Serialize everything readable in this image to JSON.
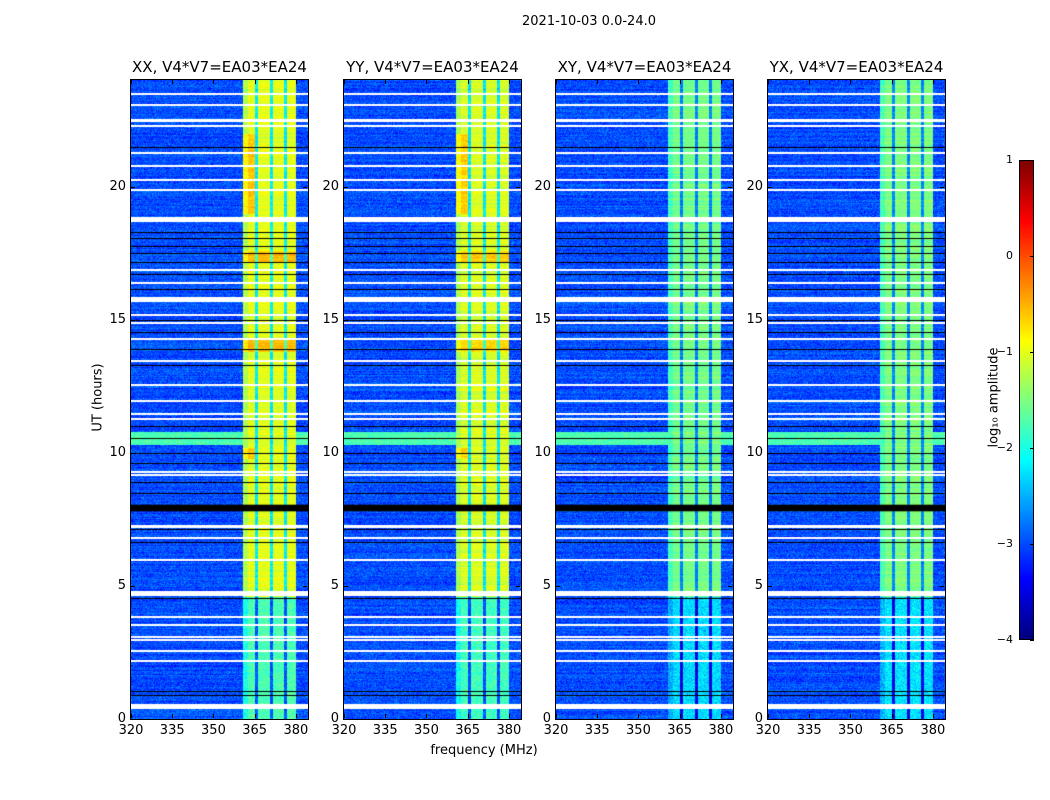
{
  "suptitle": "2021-10-03 0.0-24.0",
  "xlabel": "frequency (MHz)",
  "ylabel": "UT (hours)",
  "chart_data": [
    {
      "type": "heatmap",
      "title": "XX, V4*V7=EA03*EA24",
      "band_level": -1.0
    },
    {
      "type": "heatmap",
      "title": "YY, V4*V7=EA03*EA24",
      "band_level": -1.05
    },
    {
      "type": "heatmap",
      "title": "XY, V4*V7=EA03*EA24",
      "band_level": -1.55
    },
    {
      "type": "heatmap",
      "title": "YX, V4*V7=EA03*EA24",
      "band_level": -1.5
    }
  ],
  "axes": {
    "xlim": [
      320,
      384.4
    ],
    "ylim": [
      0,
      24
    ],
    "xticks": [
      "320",
      "335",
      "350",
      "365",
      "380"
    ],
    "xtick_values": [
      320,
      335,
      350,
      365,
      380
    ],
    "yticks": [
      "0",
      "5",
      "10",
      "15",
      "20"
    ],
    "ytick_values": [
      0,
      5,
      10,
      15,
      20
    ]
  },
  "features": {
    "background_level": -3.0,
    "band_mhz": [
      360.7,
      380
    ],
    "band_gaps_mhz": [
      365.5,
      371,
      376
    ],
    "weak_band_before_ut": 4.6,
    "elevated_rfi_ut": [
      10.3,
      10.8
    ],
    "flagged_white_ut": [
      0.45,
      0.5,
      0.55,
      2.2,
      2.6,
      3.0,
      3.1,
      3.55,
      3.85,
      4.7,
      4.75,
      4.8,
      6.0,
      6.85,
      7.25,
      7.3,
      9.2,
      9.3,
      11.3,
      11.5,
      12.0,
      12.6,
      13.5,
      14.3,
      14.9,
      15.2,
      15.75,
      15.8,
      15.85,
      16.4,
      16.9,
      18.75,
      18.8,
      18.85,
      19.9,
      20.3,
      20.8,
      21.3,
      22.3,
      22.5,
      22.55,
      23.1,
      23.5
    ],
    "black_ut": [
      0.9,
      1.05,
      4.55,
      6.65,
      7.15,
      8.5,
      8.9,
      9.6,
      10.0,
      10.55,
      11.0,
      13.3,
      13.9,
      14.55,
      15.0,
      16.15,
      16.7,
      17.15,
      17.5,
      17.75,
      18.05,
      18.3,
      21.5
    ],
    "black_block_ut": [
      7.8,
      8.05
    ]
  },
  "colorbar": {
    "label": "log₁₀ amplitude",
    "range": [
      -4,
      1
    ],
    "ticks": [
      "−4",
      "−3",
      "−2",
      "−1",
      "0",
      "1"
    ],
    "tick_values": [
      -4,
      -3,
      -2,
      -1,
      0,
      1
    ],
    "colormap": "jet"
  }
}
